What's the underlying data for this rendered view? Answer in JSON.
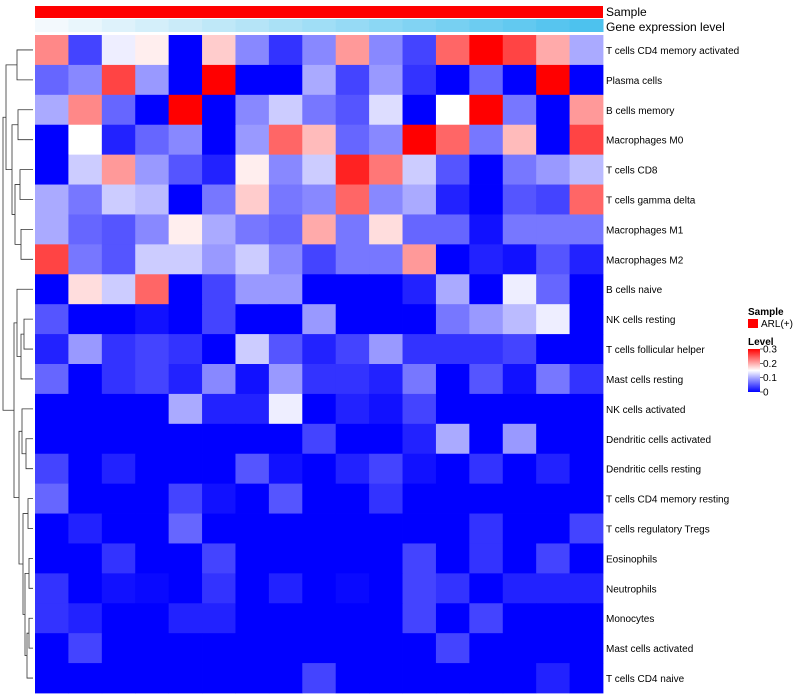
{
  "chart_data": {
    "type": "heatmap",
    "annotation_tracks": [
      {
        "name": "Sample",
        "color": "#ff0000"
      },
      {
        "name": "Gene expression level",
        "low_color": "#f3f9fd",
        "high_color": "#4dc2ee"
      }
    ],
    "rows": [
      "T cells CD4 memory activated",
      "Plasma cells",
      "B cells memory",
      "Macrophages M0",
      "T cells CD8",
      "T cells gamma delta",
      "Macrophages M1",
      "Macrophages M2",
      "B cells naive",
      "NK cells resting",
      "T cells follicular helper",
      "Mast cells resting",
      "NK cells activated",
      "Dendritic cells activated",
      "Dendritic cells resting",
      "T cells CD4 memory resting",
      "T cells regulatory  Tregs",
      "Eosinophils",
      "Neutrophils",
      "Monocytes",
      "Mast cells activated",
      "T cells CD4 naive"
    ],
    "n_samples": 17,
    "values": [
      [
        0.22,
        0.04,
        0.14,
        0.16,
        0.0,
        0.18,
        0.08,
        0.03,
        0.08,
        0.21,
        0.08,
        0.04,
        0.24,
        0.3,
        0.26,
        0.2,
        0.1
      ],
      [
        0.06,
        0.08,
        0.26,
        0.09,
        0.0,
        0.3,
        0.0,
        0.0,
        0.1,
        0.04,
        0.09,
        0.03,
        0.0,
        0.06,
        0.0,
        0.3,
        0.0
      ],
      [
        0.1,
        0.22,
        0.06,
        0.0,
        0.3,
        0.0,
        0.08,
        0.12,
        0.07,
        0.05,
        0.13,
        0.0,
        0.15,
        0.3,
        0.07,
        0.0,
        0.21
      ],
      [
        0.0,
        0.15,
        0.02,
        0.06,
        0.08,
        0.0,
        0.09,
        0.24,
        0.19,
        0.06,
        0.08,
        0.3,
        0.24,
        0.07,
        0.19,
        0.0,
        0.26
      ],
      [
        0.0,
        0.12,
        0.21,
        0.09,
        0.05,
        0.02,
        0.16,
        0.08,
        0.12,
        0.28,
        0.23,
        0.12,
        0.05,
        0.0,
        0.07,
        0.09,
        0.11
      ],
      [
        0.1,
        0.07,
        0.12,
        0.11,
        0.0,
        0.07,
        0.18,
        0.07,
        0.08,
        0.24,
        0.08,
        0.1,
        0.02,
        0.0,
        0.05,
        0.04,
        0.24
      ],
      [
        0.1,
        0.06,
        0.05,
        0.08,
        0.16,
        0.1,
        0.07,
        0.06,
        0.2,
        0.07,
        0.17,
        0.06,
        0.06,
        0.01,
        0.07,
        0.07,
        0.07
      ],
      [
        0.26,
        0.07,
        0.05,
        0.12,
        0.12,
        0.09,
        0.12,
        0.08,
        0.04,
        0.07,
        0.07,
        0.21,
        0.0,
        0.02,
        0.01,
        0.05,
        0.02
      ],
      [
        0.0,
        0.17,
        0.12,
        0.24,
        0.0,
        0.04,
        0.09,
        0.09,
        0.0,
        0.0,
        0.0,
        0.02,
        0.1,
        0.0,
        0.14,
        0.06,
        0.0
      ],
      [
        0.05,
        0.0,
        0.0,
        0.01,
        0.0,
        0.04,
        0.0,
        0.0,
        0.09,
        0.0,
        0.0,
        0.0,
        0.07,
        0.09,
        0.11,
        0.14,
        0.0
      ],
      [
        0.02,
        0.09,
        0.03,
        0.04,
        0.03,
        0.0,
        0.12,
        0.05,
        0.02,
        0.04,
        0.09,
        0.03,
        0.03,
        0.03,
        0.04,
        0.0,
        0.0
      ],
      [
        0.06,
        0.0,
        0.03,
        0.04,
        0.02,
        0.08,
        0.01,
        0.09,
        0.03,
        0.03,
        0.02,
        0.07,
        0.0,
        0.05,
        0.01,
        0.07,
        0.03
      ],
      [
        0.0,
        0.0,
        0.0,
        0.0,
        0.1,
        0.02,
        0.02,
        0.14,
        0.0,
        0.02,
        0.01,
        0.04,
        0.0,
        0.0,
        0.0,
        0.0,
        0.0
      ],
      [
        0.0,
        0.0,
        0.0,
        0.0,
        0.0,
        0.0,
        0.0,
        0.0,
        0.04,
        0.0,
        0.0,
        0.02,
        0.1,
        0.0,
        0.09,
        0.0,
        0.0
      ],
      [
        0.04,
        0.0,
        0.02,
        0.0,
        0.0,
        0.0,
        0.05,
        0.01,
        0.0,
        0.02,
        0.04,
        0.01,
        0.0,
        0.03,
        0.0,
        0.02,
        0.0
      ],
      [
        0.06,
        0.0,
        0.0,
        0.0,
        0.04,
        0.01,
        0.0,
        0.05,
        0.0,
        0.0,
        0.03,
        0.0,
        0.0,
        0.0,
        0.0,
        0.0,
        0.0
      ],
      [
        0.0,
        0.02,
        0.0,
        0.0,
        0.06,
        0.0,
        0.0,
        0.0,
        0.0,
        0.0,
        0.0,
        0.0,
        0.0,
        0.03,
        0.0,
        0.0,
        0.04
      ],
      [
        0.0,
        0.0,
        0.03,
        0.0,
        0.0,
        0.04,
        0.0,
        0.0,
        0.0,
        0.0,
        0.0,
        0.04,
        0.0,
        0.03,
        0.0,
        0.04,
        0.0
      ],
      [
        0.03,
        0.0,
        0.01,
        0.005,
        0.0,
        0.03,
        0.0,
        0.02,
        0.0,
        0.005,
        0.0,
        0.04,
        0.03,
        0.0,
        0.02,
        0.02,
        0.02
      ],
      [
        0.03,
        0.02,
        0.0,
        0.0,
        0.02,
        0.02,
        0.0,
        0.0,
        0.0,
        0.0,
        0.0,
        0.04,
        0.0,
        0.04,
        0.0,
        0.0,
        0.0
      ],
      [
        0.0,
        0.04,
        0.0,
        0.0,
        0.0,
        0.0,
        0.0,
        0.0,
        0.0,
        0.0,
        0.0,
        0.0,
        0.04,
        0.0,
        0.0,
        0.0,
        0.0
      ],
      [
        0.0,
        0.0,
        0.0,
        0.0,
        0.0,
        0.0,
        0.0,
        0.0,
        0.04,
        0.0,
        0.0,
        0.0,
        0.0,
        0.0,
        0.0,
        0.02,
        0.0
      ]
    ],
    "color_scale": {
      "min": 0,
      "mid": 0.15,
      "max": 0.3,
      "low": "#0000ff",
      "mid_color": "#ffffff",
      "high": "#ff0000"
    },
    "legend": {
      "sample_title": "Sample",
      "sample_entry": "ARL(+)",
      "sample_color": "#ff0000",
      "level_title": "Level",
      "ticks": [
        "0.3",
        "0.2",
        "0.1",
        "0"
      ],
      "tick_values": [
        0.3,
        0.2,
        0.1,
        0
      ]
    },
    "dendrogram": "rows",
    "placement": {
      "legend": "right"
    }
  }
}
